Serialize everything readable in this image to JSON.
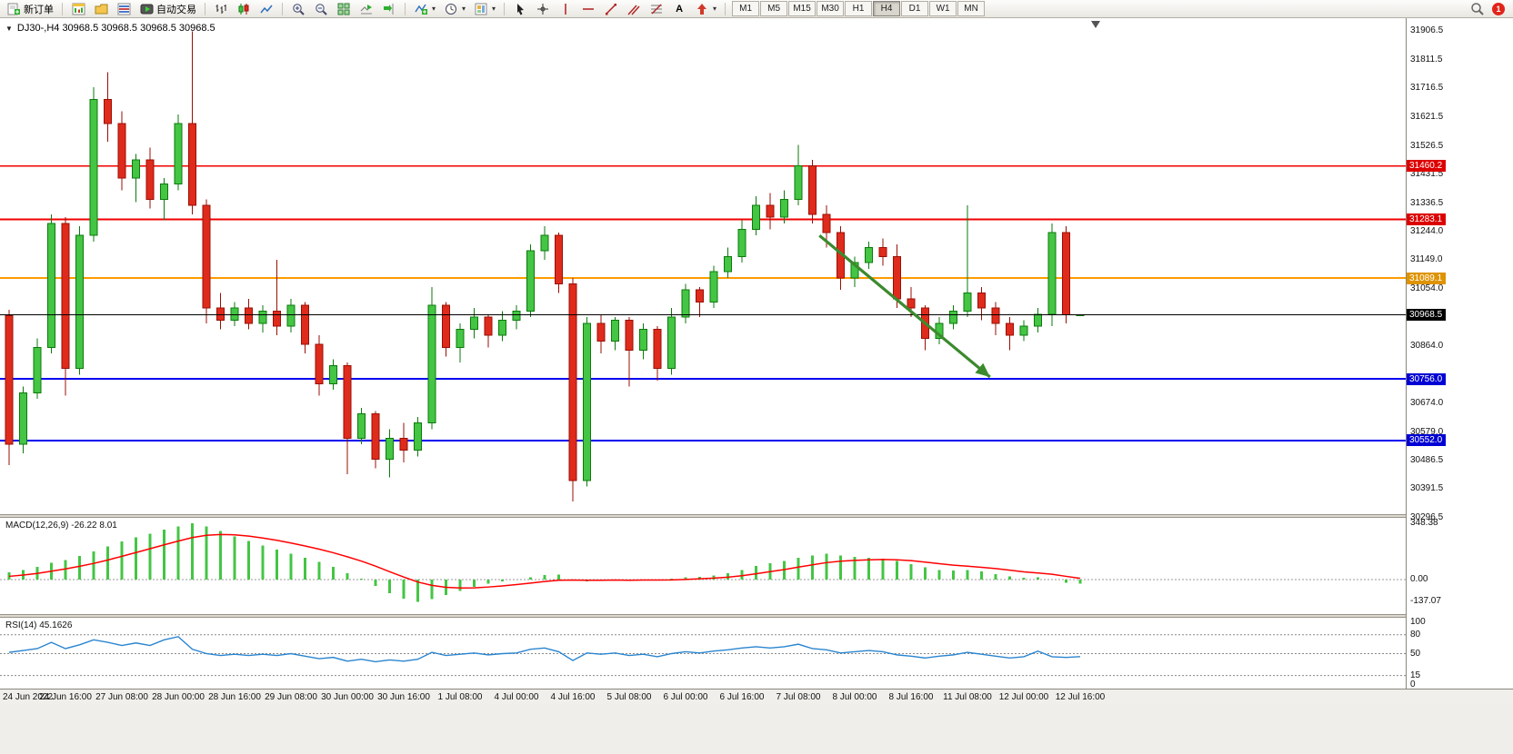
{
  "toolbar": {
    "new_order_label": "新订单",
    "autotrading_label": "自动交易",
    "timeframe_buttons": [
      "M1",
      "M5",
      "M15",
      "M30",
      "H1",
      "H4",
      "D1",
      "W1",
      "MN"
    ],
    "active_timeframe": "H4",
    "notification_badge": "1",
    "icons": [
      "new-order",
      "new-chart",
      "profiles",
      "market-watch",
      "auto-trading",
      "bar-chart",
      "candlestick-chart",
      "line-chart",
      "zoom-in",
      "zoom-out",
      "tile-windows",
      "auto-scroll",
      "chart-shift",
      "indicators",
      "periods",
      "templates",
      "cursor",
      "crosshair",
      "vertical-line",
      "horizontal-line",
      "trendline",
      "equidistant-channel",
      "fibonacci",
      "text",
      "arrows",
      "search",
      "notifications"
    ]
  },
  "chart": {
    "title": "DJ30-,H4  30968.5 30968.5 30968.5 30968.5"
  },
  "chart_data": {
    "type": "candlestick",
    "symbol": "DJ30-",
    "timeframe": "H4",
    "style": {
      "up_fill": "#44c544",
      "up_stroke": "#0b7a0b",
      "down_fill": "#df2b1c",
      "down_stroke": "#990f05",
      "background": "#ffffff"
    },
    "x_label_step": 4,
    "x_labels": [
      "24 Jun 2022",
      "24 Jun 16:00",
      "27 Jun 08:00",
      "28 Jun 00:00",
      "28 Jun 16:00",
      "29 Jun 08:00",
      "30 Jun 00:00",
      "30 Jun 16:00",
      "1 Jul 08:00",
      "4 Jul 00:00",
      "4 Jul 16:00",
      "5 Jul 08:00",
      "6 Jul 00:00",
      "6 Jul 16:00",
      "7 Jul 08:00",
      "8 Jul 00:00",
      "8 Jul 16:00",
      "11 Jul 08:00",
      "12 Jul 00:00",
      "12 Jul 16:00"
    ],
    "candles": [
      [
        30965,
        30985,
        30470,
        30540
      ],
      [
        30540,
        30730,
        30510,
        30710
      ],
      [
        30710,
        30890,
        30690,
        30860
      ],
      [
        30860,
        31300,
        30840,
        31270
      ],
      [
        31270,
        31290,
        30700,
        30790
      ],
      [
        30790,
        31260,
        30770,
        31230
      ],
      [
        31230,
        31720,
        31210,
        31680
      ],
      [
        31680,
        31770,
        31540,
        31600
      ],
      [
        31600,
        31640,
        31380,
        31420
      ],
      [
        31420,
        31500,
        31340,
        31480
      ],
      [
        31480,
        31520,
        31320,
        31350
      ],
      [
        31350,
        31420,
        31280,
        31400
      ],
      [
        31400,
        31630,
        31380,
        31600
      ],
      [
        31600,
        31905,
        31300,
        31330
      ],
      [
        31330,
        31350,
        30940,
        30990
      ],
      [
        30990,
        31040,
        30920,
        30950
      ],
      [
        30950,
        31010,
        30930,
        30990
      ],
      [
        30990,
        31020,
        30920,
        30940
      ],
      [
        30940,
        31000,
        30910,
        30980
      ],
      [
        30980,
        31150,
        30900,
        30930
      ],
      [
        30930,
        31020,
        30910,
        31000
      ],
      [
        31000,
        31010,
        30840,
        30870
      ],
      [
        30870,
        30900,
        30700,
        30740
      ],
      [
        30740,
        30820,
        30720,
        30800
      ],
      [
        30800,
        30810,
        30440,
        30560
      ],
      [
        30560,
        30660,
        30540,
        30640
      ],
      [
        30640,
        30650,
        30460,
        30490
      ],
      [
        30490,
        30590,
        30430,
        30560
      ],
      [
        30560,
        30610,
        30480,
        30520
      ],
      [
        30520,
        30630,
        30500,
        30610
      ],
      [
        30610,
        31060,
        30590,
        31000
      ],
      [
        31000,
        31010,
        30830,
        30860
      ],
      [
        30860,
        30940,
        30810,
        30920
      ],
      [
        30920,
        30990,
        30890,
        30960
      ],
      [
        30960,
        30970,
        30860,
        30900
      ],
      [
        30900,
        30980,
        30880,
        30950
      ],
      [
        30950,
        31000,
        30920,
        30980
      ],
      [
        30980,
        31200,
        30960,
        31180
      ],
      [
        31180,
        31260,
        31150,
        31230
      ],
      [
        31230,
        31240,
        31040,
        31070
      ],
      [
        31070,
        31090,
        30350,
        30420
      ],
      [
        30420,
        30960,
        30400,
        30940
      ],
      [
        30940,
        30970,
        30840,
        30880
      ],
      [
        30880,
        30960,
        30850,
        30950
      ],
      [
        30950,
        30960,
        30730,
        30850
      ],
      [
        30850,
        30940,
        30820,
        30920
      ],
      [
        30920,
        30930,
        30750,
        30790
      ],
      [
        30790,
        30990,
        30770,
        30960
      ],
      [
        30960,
        31070,
        30940,
        31050
      ],
      [
        31050,
        31060,
        30960,
        31010
      ],
      [
        31010,
        31130,
        30990,
        31110
      ],
      [
        31110,
        31190,
        31090,
        31160
      ],
      [
        31160,
        31280,
        31140,
        31250
      ],
      [
        31250,
        31360,
        31230,
        31330
      ],
      [
        31330,
        31370,
        31250,
        31290
      ],
      [
        31290,
        31380,
        31270,
        31350
      ],
      [
        31350,
        31530,
        31330,
        31460
      ],
      [
        31460,
        31480,
        31270,
        31300
      ],
      [
        31300,
        31330,
        31190,
        31240
      ],
      [
        31240,
        31260,
        31050,
        31090
      ],
      [
        31090,
        31160,
        31060,
        31140
      ],
      [
        31140,
        31210,
        31120,
        31190
      ],
      [
        31190,
        31220,
        31130,
        31160
      ],
      [
        31160,
        31200,
        30990,
        31020
      ],
      [
        31020,
        31060,
        30960,
        30990
      ],
      [
        30990,
        31000,
        30850,
        30890
      ],
      [
        30890,
        30960,
        30870,
        30940
      ],
      [
        30940,
        31000,
        30920,
        30980
      ],
      [
        30980,
        31330,
        30960,
        31040
      ],
      [
        31040,
        31060,
        30950,
        30990
      ],
      [
        30990,
        31010,
        30900,
        30940
      ],
      [
        30940,
        30960,
        30850,
        30900
      ],
      [
        30900,
        30950,
        30880,
        30930
      ],
      [
        30930,
        30990,
        30910,
        30970
      ],
      [
        30970,
        31270,
        30930,
        31240
      ],
      [
        31240,
        31260,
        30940,
        30968.5
      ],
      [
        30968.5,
        30968.5,
        30968.5,
        30968.5
      ]
    ],
    "levels": [
      {
        "price": 31460.2,
        "label": "31460.2",
        "color": "#f20000",
        "width": 1.6,
        "badge_bg": "#dd0000",
        "role": "resistance"
      },
      {
        "price": 31283.1,
        "label": "31283.1",
        "color": "#f20000",
        "width": 1.6,
        "badge_bg": "#dd0000",
        "role": "resistance"
      },
      {
        "price": 31089.1,
        "label": "31089.1",
        "color": "#ff9c00",
        "width": 2,
        "badge_bg": "#df9300",
        "role": "pivot"
      },
      {
        "price": 30968.5,
        "label": "30968.5",
        "color": "#000000",
        "width": 1,
        "badge_bg": "#000000",
        "role": "current"
      },
      {
        "price": 30756.0,
        "label": "30756.0",
        "color": "#0000f0",
        "width": 2,
        "badge_bg": "#0000d4",
        "role": "support"
      },
      {
        "price": 30552.0,
        "label": "30552.0",
        "color": "#0000f0",
        "width": 2,
        "badge_bg": "#0000d4",
        "role": "support"
      }
    ],
    "trend_arrow": {
      "from_index": 57.5,
      "from_price": 31230,
      "to_index": 69.6,
      "to_price": 30762,
      "color": "#3c8a2e"
    },
    "price_axis_ticks": [
      "31906.5",
      "31811.5",
      "31716.5",
      "31621.5",
      "31526.5",
      "31431.5",
      "31336.5",
      "31244.0",
      "31149.0",
      "31054.0",
      "30864.0",
      "30674.0",
      "30579.0",
      "30486.5",
      "30391.5",
      "30296.5"
    ],
    "panels": {
      "macd": {
        "label": "MACD(12,26,9) -26.22 8.01",
        "histogram_color": "#44c544",
        "signal_color": "#ff0000",
        "axis_labels": [
          "348.38",
          "0.00",
          "-137.07"
        ],
        "axis_values": [
          348.38,
          0,
          -137.07
        ],
        "main": [
          45,
          60,
          80,
          105,
          120,
          145,
          175,
          205,
          235,
          260,
          285,
          310,
          330,
          348,
          330,
          300,
          268,
          238,
          210,
          185,
          160,
          135,
          110,
          80,
          40,
          5,
          -40,
          -85,
          -118,
          -137,
          -120,
          -95,
          -70,
          -45,
          -25,
          -10,
          0,
          15,
          28,
          30,
          0,
          -10,
          -5,
          0,
          -5,
          0,
          -5,
          5,
          15,
          18,
          25,
          40,
          60,
          85,
          100,
          115,
          135,
          150,
          160,
          150,
          140,
          135,
          130,
          115,
          95,
          75,
          60,
          55,
          60,
          50,
          35,
          20,
          10,
          15,
          0,
          -20,
          -26.22
        ],
        "signal": [
          20,
          28,
          38,
          52,
          66,
          82,
          100,
          121,
          144,
          167,
          191,
          215,
          238,
          260,
          274,
          279,
          277,
          269,
          257,
          243,
          226,
          208,
          188,
          166,
          141,
          114,
          83,
          49,
          16,
          -15,
          -36,
          -48,
          -52,
          -51,
          -46,
          -39,
          -31,
          -22,
          -12,
          -4,
          -3,
          -4,
          -4,
          -3,
          -4,
          -3,
          -3,
          -2,
          1,
          5,
          9,
          15,
          24,
          36,
          49,
          62,
          77,
          91,
          105,
          114,
          119,
          122,
          124,
          122,
          117,
          108,
          98,
          89,
          83,
          76,
          68,
          58,
          48,
          41,
          33,
          20,
          8.01
        ]
      },
      "rsi": {
        "label": "RSI(14) 45.1626",
        "line_color": "#2a85d0",
        "axis_labels": [
          "100",
          "80",
          "50",
          "15",
          "0"
        ],
        "axis_values": [
          100,
          80,
          50,
          15,
          0
        ],
        "levels": [
          80,
          50,
          15
        ],
        "values": [
          52,
          55,
          58,
          68,
          58,
          64,
          72,
          68,
          63,
          67,
          63,
          72,
          77,
          57,
          50,
          47,
          49,
          47,
          49,
          47,
          50,
          46,
          42,
          44,
          38,
          41,
          37,
          40,
          38,
          41,
          52,
          47,
          49,
          51,
          48,
          50,
          51,
          57,
          59,
          53,
          39,
          51,
          49,
          51,
          47,
          49,
          45,
          50,
          53,
          51,
          54,
          56,
          59,
          61,
          59,
          61,
          65,
          58,
          56,
          51,
          53,
          55,
          53,
          48,
          46,
          43,
          46,
          48,
          52,
          49,
          46,
          43,
          45,
          54,
          45,
          44,
          45.16
        ]
      }
    }
  }
}
